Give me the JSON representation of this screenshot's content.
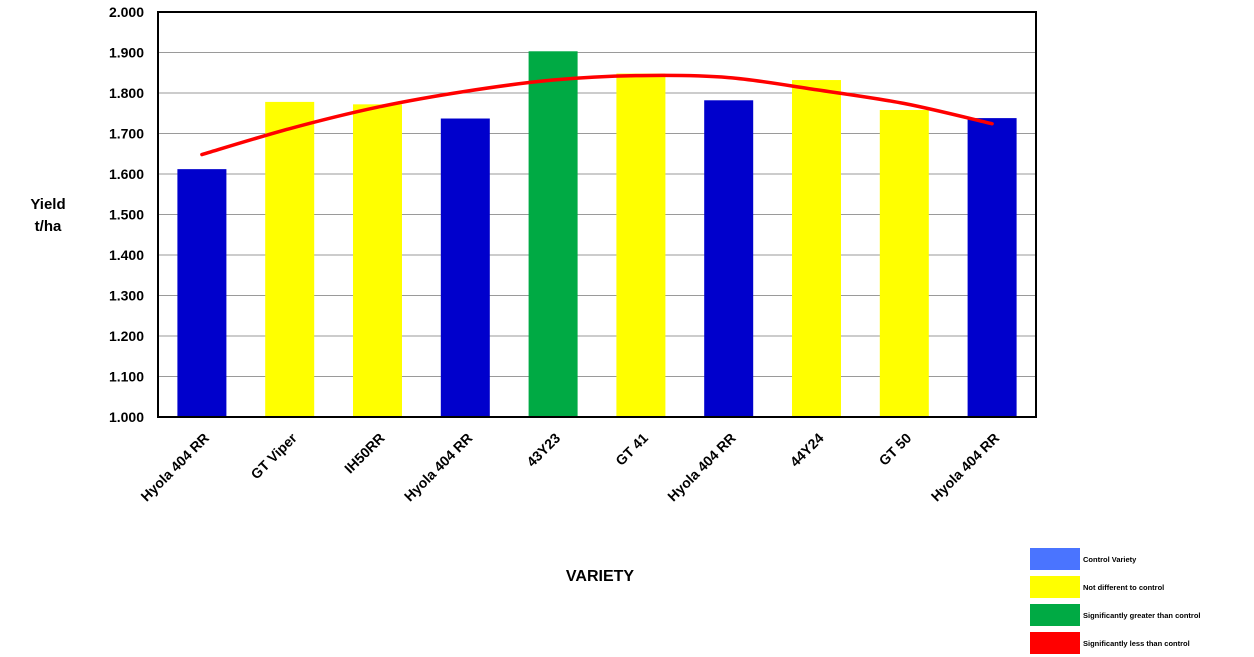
{
  "chart_data": {
    "type": "bar",
    "ylabel_lines": [
      "Yield",
      "t/ha"
    ],
    "xlabel": "VARIETY",
    "ylim": [
      1.0,
      2.0
    ],
    "yticks": [
      "1.000",
      "1.100",
      "1.200",
      "1.300",
      "1.400",
      "1.500",
      "1.600",
      "1.700",
      "1.800",
      "1.900",
      "2.000"
    ],
    "grid": true,
    "categories": [
      "Hyola 404 RR",
      "GT Viper",
      "IH50RR",
      "Hyola 404 RR",
      "43Y23",
      "GT 41",
      "Hyola 404 RR",
      "44Y24",
      "GT 50",
      "Hyola 404 RR"
    ],
    "values": [
      1.612,
      1.778,
      1.772,
      1.737,
      1.903,
      1.848,
      1.782,
      1.832,
      1.758,
      1.738
    ],
    "bar_colors": [
      "#0000cc",
      "#ffff00",
      "#ffff00",
      "#0000cc",
      "#00aa44",
      "#ffff00",
      "#0000cc",
      "#ffff00",
      "#ffff00",
      "#0000cc"
    ],
    "trend_line": {
      "color": "#ff0000",
      "points": [
        [
          0,
          1.648
        ],
        [
          1,
          1.712
        ],
        [
          2,
          1.765
        ],
        [
          3,
          1.804
        ],
        [
          4,
          1.832
        ],
        [
          5,
          1.843
        ],
        [
          6,
          1.838
        ],
        [
          7,
          1.808
        ],
        [
          8,
          1.774
        ],
        [
          9,
          1.724
        ]
      ]
    },
    "legend": {
      "placement": "bottom-right",
      "items": [
        {
          "label": "Control Variety",
          "color": "#4a74ff"
        },
        {
          "label": "Not different to control",
          "color": "#ffff00"
        },
        {
          "label": "Significantly greater than control",
          "color": "#00aa44"
        },
        {
          "label": "Significantly less than control",
          "color": "#ff0000"
        }
      ]
    }
  }
}
